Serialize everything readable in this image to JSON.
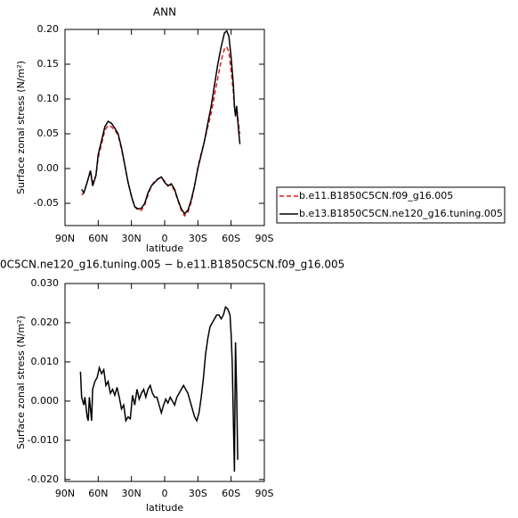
{
  "chart_data": [
    {
      "type": "line",
      "title": "ANN",
      "ylabel": "Surface zonal stress (N/m²)",
      "xlabel": "latitude",
      "xlim": [
        90,
        -90
      ],
      "ylim": [
        -0.082,
        0.2
      ],
      "xticks": [
        {
          "value": 90,
          "label": "90N"
        },
        {
          "value": 60,
          "label": "60N"
        },
        {
          "value": 30,
          "label": "30N"
        },
        0,
        {
          "value": -30,
          "label": "30S"
        },
        {
          "value": -60,
          "label": "60S"
        },
        {
          "value": -90,
          "label": "90S"
        }
      ],
      "yticks": [
        {
          "value": 0.2,
          "label": "0.20"
        },
        {
          "value": 0.15,
          "label": "0.15"
        },
        {
          "value": 0.1,
          "label": "0.10"
        },
        {
          "value": 0.05,
          "label": "0.05"
        },
        {
          "value": 0,
          "label": "0.00"
        },
        {
          "value": -0.05,
          "label": "-0.05"
        }
      ],
      "legend": "right",
      "series": [
        {
          "name": "b.e11.B1850C5CN.f09_g16.005",
          "color": "#e41a1c",
          "dashed": true,
          "x": [
            75,
            73,
            70,
            67,
            65,
            62,
            60,
            57,
            54,
            51,
            48,
            45,
            42,
            39,
            36,
            33,
            30,
            27,
            24,
            21,
            18,
            15,
            12,
            9,
            6,
            3,
            0,
            -3,
            -6,
            -9,
            -12,
            -15,
            -18,
            -21,
            -24,
            -27,
            -30,
            -33,
            -36,
            -39,
            -42,
            -45,
            -48,
            -51,
            -54,
            -56,
            -58,
            -60,
            -62,
            -63,
            -64,
            -65,
            -66,
            -67,
            -68
          ],
          "values": [
            -0.038,
            -0.035,
            -0.02,
            -0.003,
            -0.02,
            -0.01,
            0.015,
            0.035,
            0.055,
            0.062,
            0.06,
            0.055,
            0.048,
            0.028,
            0.005,
            -0.02,
            -0.04,
            -0.055,
            -0.06,
            -0.06,
            -0.052,
            -0.038,
            -0.025,
            -0.018,
            -0.015,
            -0.013,
            -0.018,
            -0.024,
            -0.024,
            -0.032,
            -0.046,
            -0.06,
            -0.068,
            -0.063,
            -0.048,
            -0.025,
            0.002,
            0.022,
            0.04,
            0.06,
            0.08,
            0.105,
            0.13,
            0.155,
            0.172,
            0.175,
            0.168,
            0.14,
            0.11,
            0.085,
            0.08,
            0.085,
            0.075,
            0.06,
            0.05
          ]
        },
        {
          "name": "b.e13.B1850C5CN.ne120_g16.tuning.005",
          "color": "#000000",
          "dashed": false,
          "x": [
            75,
            73,
            70,
            67,
            65,
            62,
            60,
            57,
            54,
            51,
            48,
            45,
            42,
            39,
            36,
            33,
            30,
            27,
            24,
            21,
            18,
            15,
            12,
            9,
            6,
            3,
            0,
            -3,
            -6,
            -9,
            -12,
            -15,
            -18,
            -21,
            -24,
            -27,
            -30,
            -33,
            -36,
            -39,
            -42,
            -45,
            -48,
            -51,
            -54,
            -56,
            -58,
            -60,
            -62,
            -63,
            -64,
            -65,
            -66,
            -67,
            -68
          ],
          "values": [
            -0.03,
            -0.035,
            -0.02,
            -0.003,
            -0.025,
            -0.01,
            0.02,
            0.04,
            0.06,
            0.068,
            0.065,
            0.058,
            0.05,
            0.03,
            0.005,
            -0.02,
            -0.04,
            -0.055,
            -0.058,
            -0.057,
            -0.05,
            -0.035,
            -0.025,
            -0.02,
            -0.015,
            -0.012,
            -0.02,
            -0.025,
            -0.022,
            -0.03,
            -0.045,
            -0.058,
            -0.065,
            -0.06,
            -0.045,
            -0.025,
            0,
            0.02,
            0.04,
            0.065,
            0.09,
            0.12,
            0.15,
            0.175,
            0.195,
            0.198,
            0.19,
            0.16,
            0.12,
            0.09,
            0.075,
            0.09,
            0.07,
            0.05,
            0.035
          ]
        }
      ]
    },
    {
      "type": "line",
      "title": "0C5CN.ne120_g16.tuning.005 − b.e11.B1850C5CN.f09_g16.005",
      "ylabel": "Surface zonal stress (N/m²)",
      "xlabel": "latitude",
      "xlim": [
        90,
        -90
      ],
      "ylim": [
        -0.0205,
        0.03
      ],
      "xticks": [
        {
          "value": 90,
          "label": "90N"
        },
        {
          "value": 60,
          "label": "60N"
        },
        {
          "value": 30,
          "label": "30N"
        },
        0,
        {
          "value": -30,
          "label": "30S"
        },
        {
          "value": -60,
          "label": "60S"
        },
        {
          "value": -90,
          "label": "90S"
        }
      ],
      "yticks": [
        {
          "value": 0.03,
          "label": "0.030"
        },
        {
          "value": 0.02,
          "label": "0.020"
        },
        {
          "value": 0.01,
          "label": "0.010"
        },
        {
          "value": 0,
          "label": "0.000"
        },
        {
          "value": -0.01,
          "label": "-0.010"
        },
        {
          "value": -0.02,
          "label": "-0.020"
        }
      ],
      "series": [
        {
          "color": "#000000",
          "dashed": false,
          "x": [
            76,
            75,
            73,
            72,
            70,
            69,
            68,
            66,
            65,
            63,
            61,
            59,
            57,
            55,
            53,
            51,
            49,
            47,
            45,
            43,
            41,
            39,
            37,
            35,
            33,
            31,
            29,
            27,
            25,
            23,
            21,
            19,
            17,
            15,
            13,
            11,
            9,
            7,
            5,
            3,
            1,
            -1,
            -3,
            -5,
            -7,
            -9,
            -11,
            -13,
            -15,
            -17,
            -19,
            -21,
            -23,
            -25,
            -27,
            -29,
            -31,
            -33,
            -35,
            -37,
            -39,
            -41,
            -43,
            -45,
            -47,
            -49,
            -51,
            -53,
            -55,
            -57,
            -59,
            -60,
            -61,
            -62,
            -63,
            -63.5,
            -64,
            -65,
            -66
          ],
          "values": [
            0.0075,
            0.001,
            -0.001,
            0.001,
            -0.004,
            -0.005,
            0.001,
            -0.005,
            0.003,
            0.005,
            0.006,
            0.0085,
            0.007,
            0.008,
            0.004,
            0.005,
            0.002,
            0.003,
            0.0015,
            0.0035,
            0.001,
            -0.002,
            -0.001,
            -0.005,
            -0.004,
            -0.0045,
            0.0015,
            -0.001,
            0.003,
            0.0005,
            0.002,
            0.003,
            0.001,
            0.003,
            0.004,
            0.002,
            0.001,
            0.001,
            -0.001,
            -0.003,
            -0.001,
            0.0005,
            -0.0005,
            0.001,
            0,
            -0.001,
            0.001,
            0.002,
            0.003,
            0.004,
            0.003,
            0.002,
            0,
            -0.002,
            -0.004,
            -0.005,
            -0.003,
            0.001,
            0.006,
            0.012,
            0.016,
            0.019,
            0.02,
            0.021,
            0.022,
            0.022,
            0.021,
            0.022,
            0.024,
            0.0235,
            0.022,
            0.017,
            0.01,
            -0.005,
            -0.018,
            0,
            0.015,
            0.002,
            -0.015
          ]
        }
      ]
    }
  ]
}
